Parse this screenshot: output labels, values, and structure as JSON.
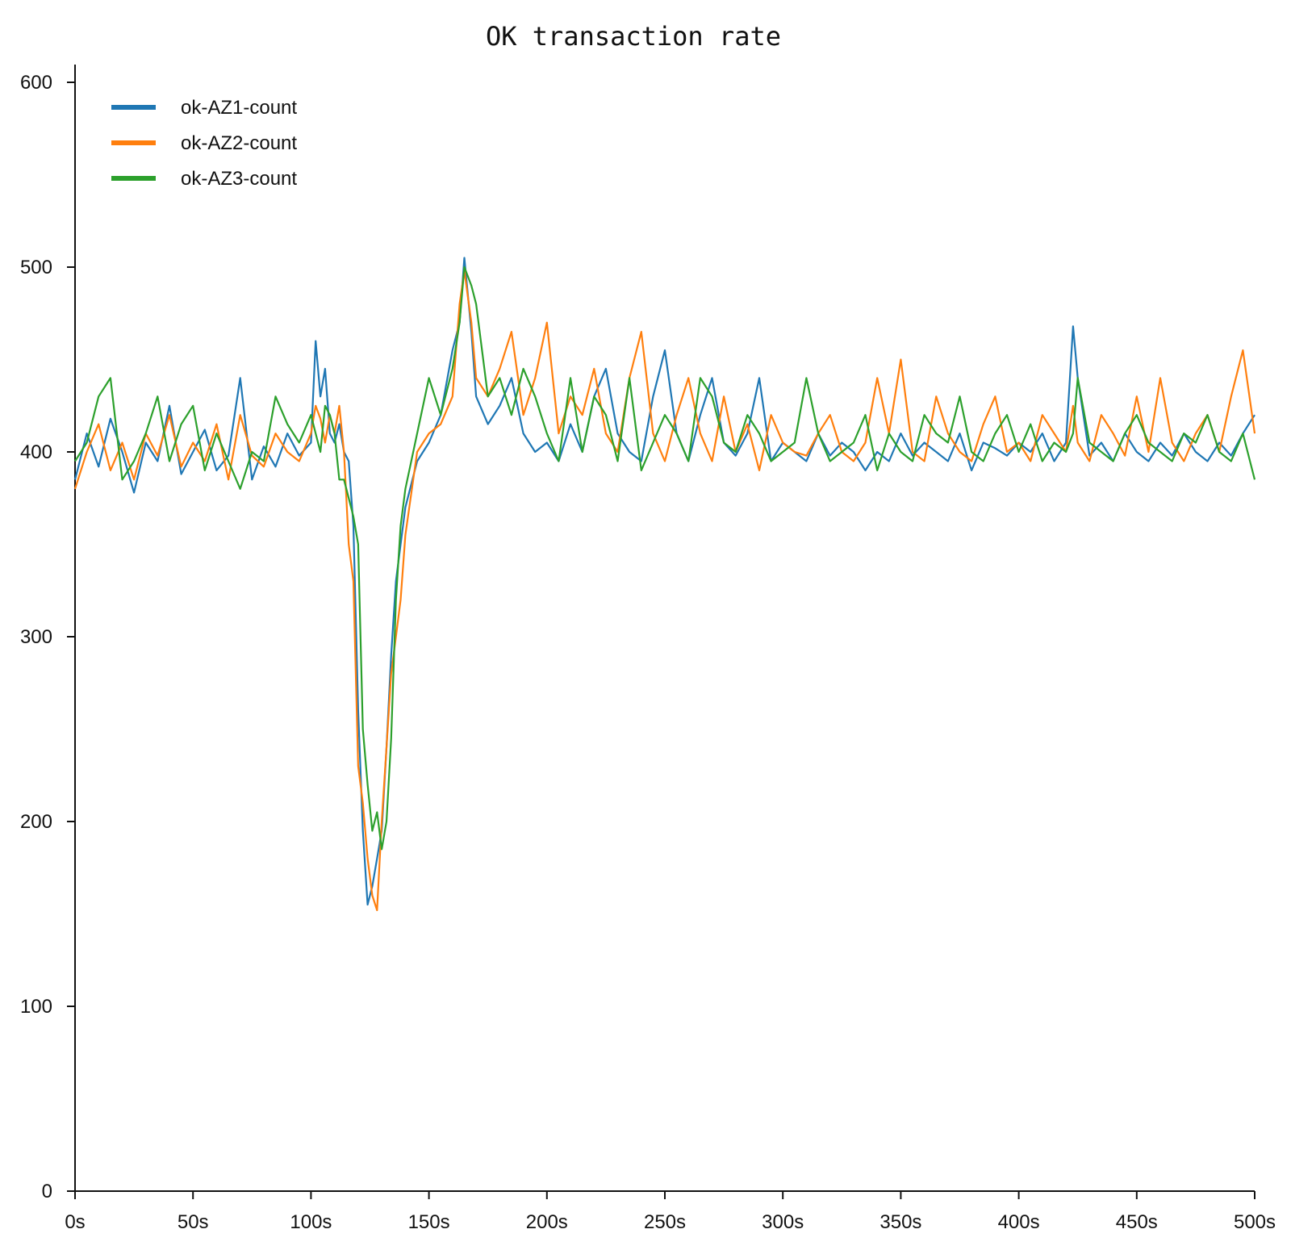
{
  "chart_data": {
    "type": "line",
    "title": "OK transaction rate",
    "xlabel": "",
    "ylabel": "",
    "xlim": [
      0,
      500
    ],
    "ylim": [
      0,
      610
    ],
    "x_ticks": [
      0,
      50,
      100,
      150,
      200,
      250,
      300,
      350,
      400,
      450,
      500
    ],
    "x_tick_labels": [
      "0s",
      "50s",
      "100s",
      "150s",
      "200s",
      "250s",
      "300s",
      "350s",
      "400s",
      "450s",
      "500s"
    ],
    "y_ticks": [
      0,
      100,
      200,
      300,
      400,
      500,
      600
    ],
    "y_tick_labels": [
      "0",
      "100",
      "200",
      "300",
      "400",
      "500",
      "600"
    ],
    "grid": false,
    "legend": "top-left",
    "series": [
      {
        "name": "ok-AZ1-count",
        "color": "#1f77b4",
        "x": [
          0,
          5,
          10,
          15,
          20,
          25,
          30,
          35,
          40,
          45,
          50,
          55,
          60,
          65,
          70,
          75,
          80,
          85,
          90,
          95,
          100,
          102,
          104,
          106,
          108,
          110,
          112,
          114,
          116,
          118,
          120,
          122,
          124,
          126,
          128,
          130,
          132,
          134,
          136,
          138,
          140,
          145,
          150,
          155,
          160,
          163,
          165,
          168,
          170,
          175,
          180,
          185,
          190,
          195,
          200,
          205,
          210,
          215,
          220,
          225,
          230,
          235,
          240,
          245,
          250,
          255,
          260,
          265,
          270,
          275,
          280,
          285,
          290,
          295,
          300,
          305,
          310,
          315,
          320,
          325,
          330,
          335,
          340,
          345,
          350,
          355,
          360,
          365,
          370,
          375,
          380,
          385,
          390,
          395,
          400,
          405,
          410,
          415,
          420,
          423,
          425,
          430,
          435,
          440,
          445,
          450,
          455,
          460,
          465,
          470,
          475,
          480,
          485,
          490,
          495,
          500
        ],
        "y": [
          385,
          410,
          392,
          418,
          400,
          378,
          405,
          395,
          425,
          388,
          400,
          412,
          390,
          398,
          440,
          385,
          403,
          392,
          410,
          398,
          405,
          460,
          430,
          445,
          410,
          405,
          415,
          400,
          395,
          360,
          260,
          195,
          155,
          165,
          180,
          195,
          240,
          290,
          330,
          350,
          370,
          395,
          405,
          420,
          455,
          470,
          505,
          465,
          430,
          415,
          425,
          440,
          410,
          400,
          405,
          395,
          415,
          400,
          430,
          445,
          410,
          400,
          395,
          430,
          455,
          410,
          395,
          420,
          440,
          405,
          398,
          410,
          440,
          395,
          405,
          400,
          395,
          410,
          398,
          405,
          400,
          390,
          400,
          395,
          410,
          398,
          405,
          400,
          395,
          410,
          390,
          405,
          402,
          398,
          405,
          400,
          410,
          395,
          405,
          468,
          440,
          398,
          405,
          395,
          410,
          400,
          395,
          405,
          398,
          410,
          400,
          395,
          405,
          398,
          410,
          420
        ]
      },
      {
        "name": "ok-AZ2-count",
        "color": "#ff7f0e",
        "x": [
          0,
          5,
          10,
          15,
          20,
          25,
          30,
          35,
          40,
          45,
          50,
          55,
          60,
          65,
          70,
          75,
          80,
          85,
          90,
          95,
          100,
          102,
          104,
          106,
          108,
          110,
          112,
          114,
          116,
          118,
          120,
          122,
          124,
          126,
          128,
          130,
          132,
          134,
          136,
          138,
          140,
          145,
          150,
          155,
          160,
          163,
          165,
          168,
          170,
          175,
          180,
          185,
          190,
          195,
          200,
          205,
          210,
          215,
          220,
          225,
          230,
          235,
          240,
          245,
          250,
          255,
          260,
          265,
          270,
          275,
          280,
          285,
          290,
          295,
          300,
          305,
          310,
          315,
          320,
          325,
          330,
          335,
          340,
          345,
          350,
          355,
          360,
          365,
          370,
          375,
          380,
          385,
          390,
          395,
          400,
          405,
          410,
          415,
          420,
          423,
          425,
          430,
          435,
          440,
          445,
          450,
          455,
          460,
          465,
          470,
          475,
          480,
          485,
          490,
          495,
          500
        ],
        "y": [
          380,
          400,
          415,
          390,
          405,
          385,
          410,
          398,
          420,
          392,
          405,
          395,
          415,
          385,
          420,
          398,
          392,
          410,
          400,
          395,
          410,
          425,
          418,
          405,
          420,
          410,
          425,
          400,
          350,
          330,
          230,
          210,
          180,
          160,
          152,
          200,
          240,
          280,
          300,
          320,
          355,
          400,
          410,
          415,
          430,
          480,
          498,
          470,
          440,
          430,
          445,
          465,
          420,
          440,
          470,
          410,
          430,
          420,
          445,
          410,
          400,
          440,
          465,
          410,
          395,
          420,
          440,
          410,
          395,
          430,
          400,
          415,
          390,
          420,
          405,
          400,
          398,
          410,
          420,
          400,
          395,
          405,
          440,
          410,
          450,
          400,
          395,
          430,
          410,
          400,
          395,
          415,
          430,
          400,
          405,
          395,
          420,
          410,
          400,
          425,
          405,
          395,
          420,
          410,
          398,
          430,
          400,
          440,
          405,
          395,
          410,
          420,
          400,
          430,
          455,
          410
        ]
      },
      {
        "name": "ok-AZ3-count",
        "color": "#2ca02c",
        "x": [
          0,
          5,
          10,
          15,
          20,
          25,
          30,
          35,
          40,
          45,
          50,
          55,
          60,
          65,
          70,
          75,
          80,
          85,
          90,
          95,
          100,
          102,
          104,
          106,
          108,
          110,
          112,
          114,
          116,
          118,
          120,
          122,
          124,
          126,
          128,
          130,
          132,
          134,
          136,
          138,
          140,
          145,
          150,
          155,
          160,
          163,
          165,
          168,
          170,
          175,
          180,
          185,
          190,
          195,
          200,
          205,
          210,
          215,
          220,
          225,
          230,
          235,
          240,
          245,
          250,
          255,
          260,
          265,
          270,
          275,
          280,
          285,
          290,
          295,
          300,
          305,
          310,
          315,
          320,
          325,
          330,
          335,
          340,
          345,
          350,
          355,
          360,
          365,
          370,
          375,
          380,
          385,
          390,
          395,
          400,
          405,
          410,
          415,
          420,
          423,
          425,
          430,
          435,
          440,
          445,
          450,
          455,
          460,
          465,
          470,
          475,
          480,
          485,
          490,
          495,
          500
        ],
        "y": [
          395,
          405,
          430,
          440,
          385,
          395,
          410,
          430,
          395,
          415,
          425,
          390,
          410,
          395,
          380,
          400,
          395,
          430,
          415,
          405,
          420,
          410,
          400,
          425,
          420,
          410,
          385,
          385,
          375,
          365,
          350,
          250,
          220,
          195,
          205,
          185,
          200,
          245,
          320,
          360,
          380,
          410,
          440,
          420,
          445,
          470,
          500,
          490,
          480,
          430,
          440,
          420,
          445,
          430,
          410,
          395,
          440,
          400,
          430,
          420,
          395,
          440,
          390,
          405,
          420,
          410,
          395,
          440,
          430,
          405,
          400,
          420,
          410,
          395,
          400,
          405,
          440,
          410,
          395,
          400,
          405,
          420,
          390,
          410,
          400,
          395,
          420,
          410,
          405,
          430,
          400,
          395,
          410,
          420,
          400,
          415,
          395,
          405,
          400,
          410,
          440,
          405,
          400,
          395,
          410,
          420,
          405,
          400,
          395,
          410,
          405,
          420,
          400,
          395,
          410,
          385
        ]
      }
    ]
  }
}
